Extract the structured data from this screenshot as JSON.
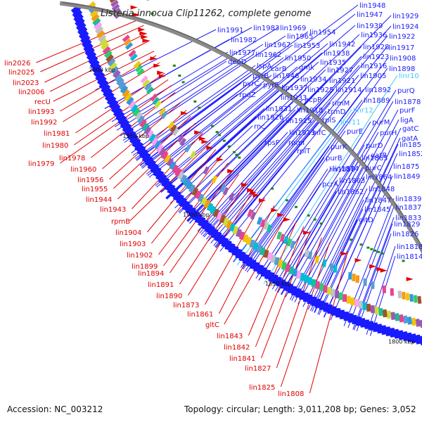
{
  "title": "Listeria innocua Clip11262, complete genome",
  "accession": "Accession: NC_003212",
  "topology": "Topology: circular; Length: 3,011,208 bp; Genes: 3,052",
  "ticks": [
    "2000 kbp",
    "1950 kbp",
    "1900 kbp",
    "1850 kbp",
    "1800 kbp"
  ],
  "colors": {
    "outer": "#1a1aff",
    "inner": "#e00000",
    "rna": "#40c8ff",
    "backbone": "#8a8a8a"
  },
  "outer_labels": [
    {
      "t": "lin1948",
      "c": "outer"
    },
    {
      "t": "lin1929",
      "c": "outer"
    },
    {
      "t": "lin1947",
      "c": "outer"
    },
    {
      "t": "lin1924",
      "c": "outer"
    },
    {
      "t": "lin1939",
      "c": "outer"
    },
    {
      "t": "lin1991",
      "c": "outer"
    },
    {
      "t": "lin1983",
      "c": "outer"
    },
    {
      "t": "lin1969",
      "c": "outer"
    },
    {
      "t": "lin1936",
      "c": "outer"
    },
    {
      "t": "lin1922",
      "c": "outer"
    },
    {
      "t": "lin1954",
      "c": "outer"
    },
    {
      "t": "lin1982",
      "c": "outer"
    },
    {
      "t": "lin1965",
      "c": "outer"
    },
    {
      "t": "lin1942",
      "c": "outer"
    },
    {
      "t": "lin1928",
      "c": "outer"
    },
    {
      "t": "lin1917",
      "c": "outer"
    },
    {
      "t": "lin1967",
      "c": "outer"
    },
    {
      "t": "lin1953",
      "c": "outer"
    },
    {
      "t": "lin1938",
      "c": "outer"
    },
    {
      "t": "lin1977",
      "c": "outer"
    },
    {
      "t": "lin1962",
      "c": "outer"
    },
    {
      "t": "lin1923",
      "c": "outer"
    },
    {
      "t": "lin1908",
      "c": "outer"
    },
    {
      "t": "lin1950",
      "c": "outer"
    },
    {
      "t": "lin1935",
      "c": "outer"
    },
    {
      "t": "deoD",
      "c": "outer"
    },
    {
      "t": "lspA",
      "c": "outer"
    },
    {
      "t": "carB",
      "c": "outer"
    },
    {
      "t": "gmk",
      "c": "outer"
    },
    {
      "t": "lin1916",
      "c": "outer"
    },
    {
      "t": "lin1898",
      "c": "outer"
    },
    {
      "t": "lin1927",
      "c": "outer"
    },
    {
      "t": "pyrB",
      "c": "outer"
    },
    {
      "t": "lin1946",
      "c": "outer"
    },
    {
      "t": "lin1905",
      "c": "outer"
    },
    {
      "t": "linr10",
      "c": "rna"
    },
    {
      "t": "pyrC",
      "c": "outer"
    },
    {
      "t": "pyrE",
      "c": "outer"
    },
    {
      "t": "lin1934",
      "c": "outer"
    },
    {
      "t": "lin1921",
      "c": "outer"
    },
    {
      "t": "lin1937",
      "c": "outer"
    },
    {
      "t": "lin1925",
      "c": "outer"
    },
    {
      "t": "lin1914",
      "c": "outer"
    },
    {
      "t": "lin1892",
      "c": "outer"
    },
    {
      "t": "purQ",
      "c": "outer"
    },
    {
      "t": "rpoZ",
      "c": "outer"
    },
    {
      "t": "lin1933",
      "c": "outer"
    },
    {
      "t": "acpP",
      "c": "outer"
    },
    {
      "t": "lin1889",
      "c": "outer"
    },
    {
      "t": "lin1878",
      "c": "outer"
    },
    {
      "t": "rimM",
      "c": "outer"
    },
    {
      "t": "lin1931",
      "c": "outer"
    },
    {
      "t": "lin1918",
      "c": "outer"
    },
    {
      "t": "trmD",
      "c": "outer"
    },
    {
      "t": "linr12",
      "c": "rna"
    },
    {
      "t": "purF",
      "c": "outer"
    },
    {
      "t": "ligA",
      "c": "outer"
    },
    {
      "t": "lin1926",
      "c": "outer"
    },
    {
      "t": "lin1915",
      "c": "outer"
    },
    {
      "t": "rplS",
      "c": "outer"
    },
    {
      "t": "purM",
      "c": "outer"
    },
    {
      "t": "gatC",
      "c": "outer"
    },
    {
      "t": "rnc",
      "c": "outer"
    },
    {
      "t": "linr11",
      "c": "rna"
    },
    {
      "t": "purH",
      "c": "outer"
    },
    {
      "t": "lin1913",
      "c": "outer"
    },
    {
      "t": "infC",
      "c": "outer"
    },
    {
      "t": "purE",
      "c": "outer"
    },
    {
      "t": "gatA",
      "c": "outer"
    },
    {
      "t": "rpsP",
      "c": "outer"
    },
    {
      "t": "rpmI",
      "c": "outer"
    },
    {
      "t": "lin1856",
      "c": "outer"
    },
    {
      "t": "purK",
      "c": "outer"
    },
    {
      "t": "purD",
      "c": "outer"
    },
    {
      "t": "gatB",
      "c": "outer"
    },
    {
      "t": "lin1852",
      "c": "outer"
    },
    {
      "t": "rplT",
      "c": "outer"
    },
    {
      "t": "purB",
      "c": "outer"
    },
    {
      "t": "lin1865",
      "c": "outer"
    },
    {
      "t": "lin1875",
      "c": "outer"
    },
    {
      "t": "lin1850",
      "c": "outer"
    },
    {
      "t": "purC",
      "c": "outer"
    },
    {
      "t": "lin1874",
      "c": "outer"
    },
    {
      "t": "lin1864",
      "c": "outer"
    },
    {
      "t": "lin1849",
      "c": "outer"
    },
    {
      "t": "lin1863",
      "c": "outer"
    },
    {
      "t": "pcrA",
      "c": "outer"
    },
    {
      "t": "lin1848",
      "c": "outer"
    },
    {
      "t": "lin1862",
      "c": "outer"
    },
    {
      "t": "lin1847",
      "c": "outer"
    },
    {
      "t": "lin1839",
      "c": "outer"
    },
    {
      "t": "lin1845",
      "c": "outer"
    },
    {
      "t": "lin1837",
      "c": "outer"
    },
    {
      "t": "lin1833",
      "c": "outer"
    },
    {
      "t": "gltD",
      "c": "outer"
    },
    {
      "t": "lin1829",
      "c": "outer"
    },
    {
      "t": "lin1826",
      "c": "outer"
    },
    {
      "t": "lin1818",
      "c": "outer"
    },
    {
      "t": "lin1814",
      "c": "outer"
    }
  ],
  "inner_labels": [
    "lin2026",
    "lin2025",
    "lin2023",
    "lin2006",
    "recU",
    "lin1993",
    "lin1992",
    "lin1981",
    "lin1980",
    "lin1978",
    "lin1979",
    "lin1960",
    "lin1956",
    "lin1955",
    "lin1944",
    "lin1943",
    "rpmB",
    "lin1904",
    "lin1903",
    "lin1902",
    "lin1899",
    "lin1894",
    "lin1891",
    "lin1890",
    "lin1873",
    "lin1861",
    "gltC",
    "lin1843",
    "lin1842",
    "lin1841",
    "lin1827",
    "lin1825",
    "lin1808"
  ]
}
